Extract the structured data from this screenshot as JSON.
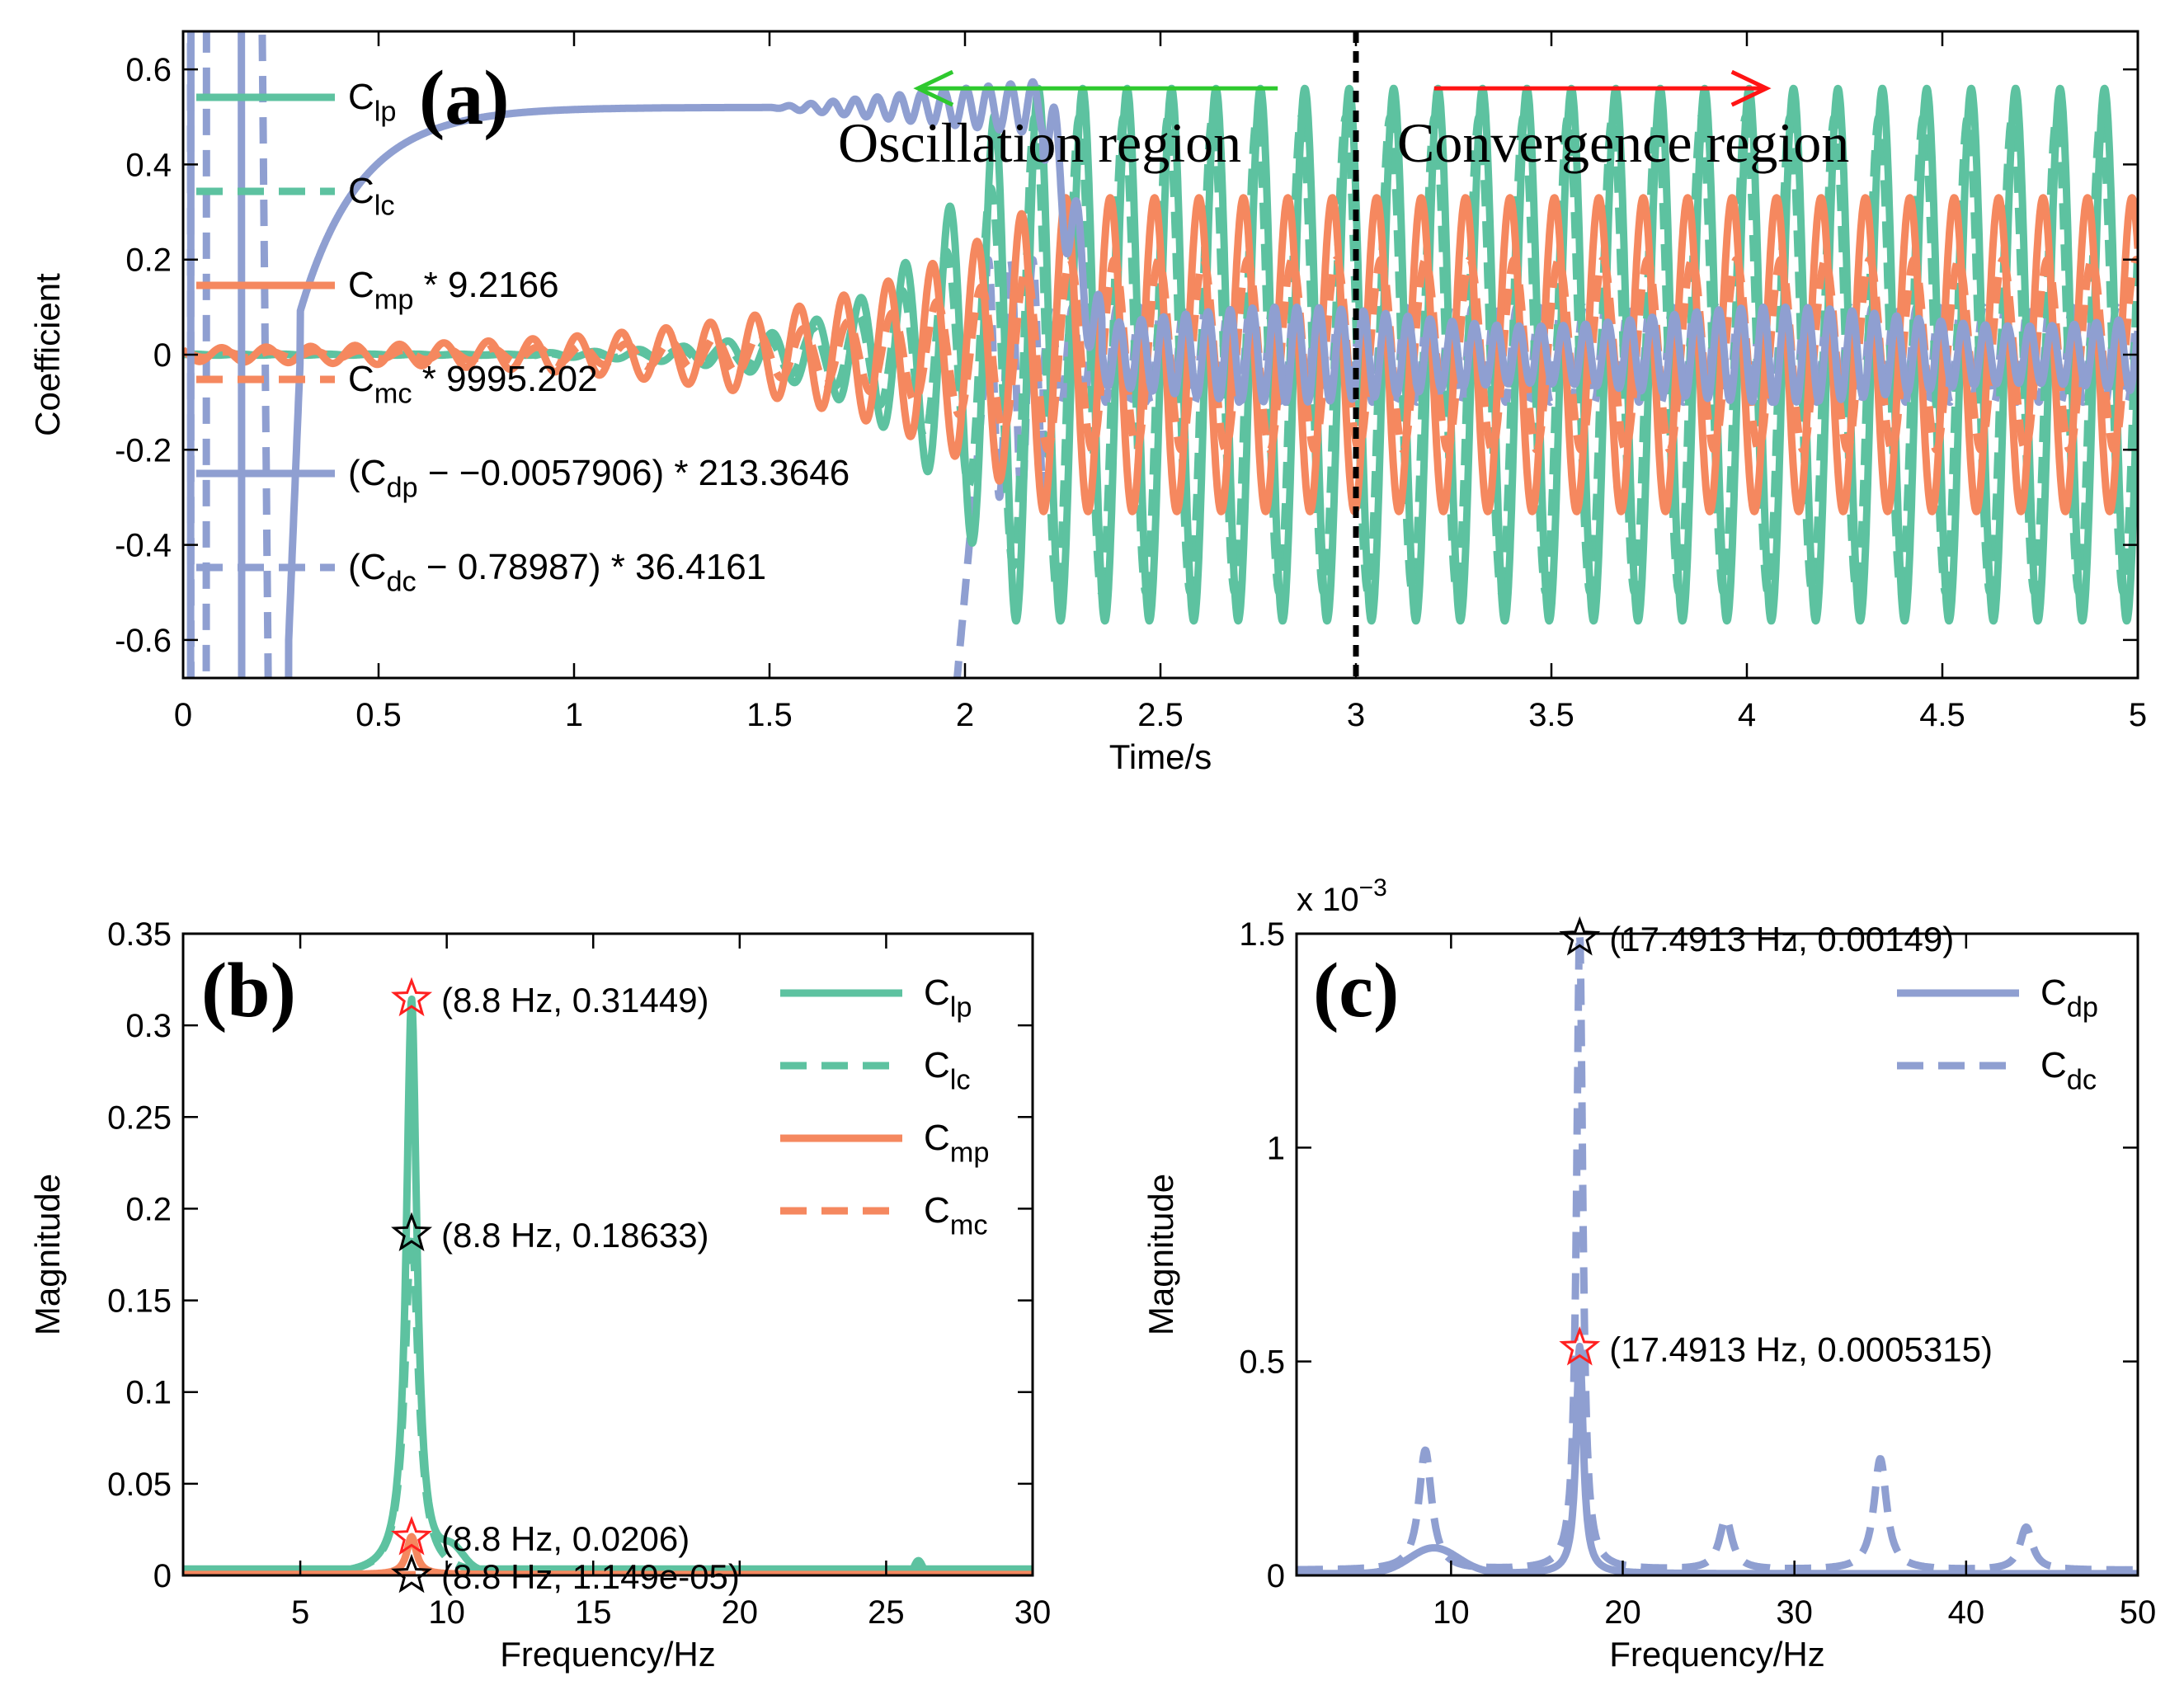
{
  "colors": {
    "green": "#5dc2a0",
    "orange": "#f5885f",
    "blue": "#8f9fd1",
    "axis": "#000000",
    "arrow_green": "#2ec92e",
    "arrow_red": "#ff1414",
    "star_red": "#ff2020"
  },
  "chart_data": [
    {
      "id": "a",
      "type": "line",
      "panel_label": "(a)",
      "xlabel": "Time/s",
      "ylabel": "Coefficient",
      "xlim": [
        0,
        5
      ],
      "ylim": [
        -0.68,
        0.68
      ],
      "xticks": [
        0,
        0.5,
        1,
        1.5,
        2,
        2.5,
        3,
        3.5,
        4,
        4.5,
        5
      ],
      "yticks": [
        -0.6,
        -0.4,
        -0.2,
        0,
        0.2,
        0.4,
        0.6
      ],
      "xtick_labels": [
        "0",
        "0.5",
        "1",
        "1.5",
        "2",
        "2.5",
        "3",
        "3.5",
        "4",
        "4.5",
        "5"
      ],
      "ytick_labels": [
        "-0.6",
        "-0.4",
        "-0.2",
        "0",
        "0.2",
        "0.4",
        "0.6"
      ],
      "legend_placement": "top-left",
      "legend": [
        {
          "base": "C",
          "sub": "lp",
          "rest": "",
          "color": "green",
          "dash": false
        },
        {
          "base": "C",
          "sub": "lc",
          "rest": "",
          "color": "green",
          "dash": true
        },
        {
          "base": "C",
          "sub": "mp",
          "rest": " * 9.2166",
          "color": "orange",
          "dash": false
        },
        {
          "base": "C",
          "sub": "mc",
          "rest": " * 9995.202",
          "color": "orange",
          "dash": true
        },
        {
          "base": "(C",
          "sub": "dp",
          "rest": " − −0.0057906) * 213.3646",
          "color": "blue",
          "dash": false
        },
        {
          "base": "(C",
          "sub": "dc",
          "rest": " − 0.78987) * 36.4161",
          "color": "blue",
          "dash": true
        }
      ],
      "divider_x": 3,
      "annotations": {
        "oscillation": "Oscillation region",
        "convergence": "Convergence region",
        "oscillation_arrow_from_x": 2.8,
        "oscillation_arrow_to_x": 1.88,
        "convergence_arrow_from_x": 3.2,
        "convergence_arrow_to_x": 4.05,
        "arrow_y": 0.56
      },
      "series_summary": {
        "lp": {
          "frequency_hz": 8.8,
          "steady_amplitude": 0.56,
          "growth_start_s": 1.0,
          "saturation_s": 2.1
        },
        "lc": {
          "frequency_hz": 8.8,
          "steady_amplitude": 0.5
        },
        "mp": {
          "frequency_hz": 8.8,
          "steady_amplitude": 0.33
        },
        "mc": {
          "frequency_hz": 8.8,
          "steady_amplitude": 0.2
        },
        "dp": {
          "plateau": 0.52,
          "collapse_s": 2.2,
          "steady_amplitude": 0.1
        },
        "dc": {
          "steady_amplitude": 0.1
        }
      }
    },
    {
      "id": "b",
      "type": "line",
      "panel_label": "(b)",
      "xlabel": "Frequency/Hz",
      "ylabel": "Magnitude",
      "xlim": [
        1,
        30
      ],
      "ylim": [
        0,
        0.35
      ],
      "xticks": [
        5,
        10,
        15,
        20,
        25,
        30
      ],
      "yticks": [
        0,
        0.05,
        0.1,
        0.15,
        0.2,
        0.25,
        0.3,
        0.35
      ],
      "xtick_labels": [
        "5",
        "10",
        "15",
        "20",
        "25",
        "30"
      ],
      "ytick_labels": [
        "0",
        "0.05",
        "0.1",
        "0.15",
        "0.2",
        "0.25",
        "0.3",
        "0.35"
      ],
      "legend_placement": "top-right",
      "legend": [
        {
          "base": "C",
          "sub": "lp",
          "color": "green",
          "dash": false
        },
        {
          "base": "C",
          "sub": "lc",
          "color": "green",
          "dash": true
        },
        {
          "base": "C",
          "sub": "mp",
          "color": "orange",
          "dash": false
        },
        {
          "base": "C",
          "sub": "mc",
          "color": "orange",
          "dash": true
        }
      ],
      "peaks": [
        {
          "x": 8.8,
          "y": 0.31449,
          "label": "(8.8 Hz, 0.31449)",
          "star": "red"
        },
        {
          "x": 8.8,
          "y": 0.18633,
          "label": "(8.8 Hz, 0.18633)",
          "star": "black"
        },
        {
          "x": 8.8,
          "y": 0.0206,
          "label": "(8.8 Hz, 0.0206)",
          "star": "red"
        },
        {
          "x": 8.8,
          "y": 1.149e-05,
          "label": "(8.8 Hz, 1.149e-05)",
          "star": "black"
        }
      ]
    },
    {
      "id": "c",
      "type": "line",
      "panel_label": "(c)",
      "xlabel": "Frequency/Hz",
      "ylabel": "Magnitude",
      "exponent_label": "x 10",
      "exponent_power": "−3",
      "xlim": [
        1,
        50
      ],
      "ylim": [
        0,
        1.5
      ],
      "xticks": [
        10,
        20,
        30,
        40,
        50
      ],
      "yticks": [
        0,
        0.5,
        1,
        1.5
      ],
      "xtick_labels": [
        "10",
        "20",
        "30",
        "40",
        "50"
      ],
      "ytick_labels": [
        "0",
        "0.5",
        "1",
        "1.5"
      ],
      "legend_placement": "top-right",
      "legend": [
        {
          "base": "C",
          "sub": "dp",
          "color": "blue",
          "dash": false
        },
        {
          "base": "C",
          "sub": "dc",
          "color": "blue",
          "dash": true
        }
      ],
      "peaks": [
        {
          "x": 17.4913,
          "y": 1.49,
          "label": "(17.4913 Hz, 0.00149)",
          "star": "black"
        },
        {
          "x": 17.4913,
          "y": 0.5315,
          "label": "(17.4913 Hz, 0.0005315)",
          "star": "red"
        }
      ],
      "secondary_peaks": [
        {
          "x": 8.5,
          "y": 0.28
        },
        {
          "x": 26.0,
          "y": 0.12
        },
        {
          "x": 35.0,
          "y": 0.26
        },
        {
          "x": 43.5,
          "y": 0.1
        }
      ]
    }
  ]
}
